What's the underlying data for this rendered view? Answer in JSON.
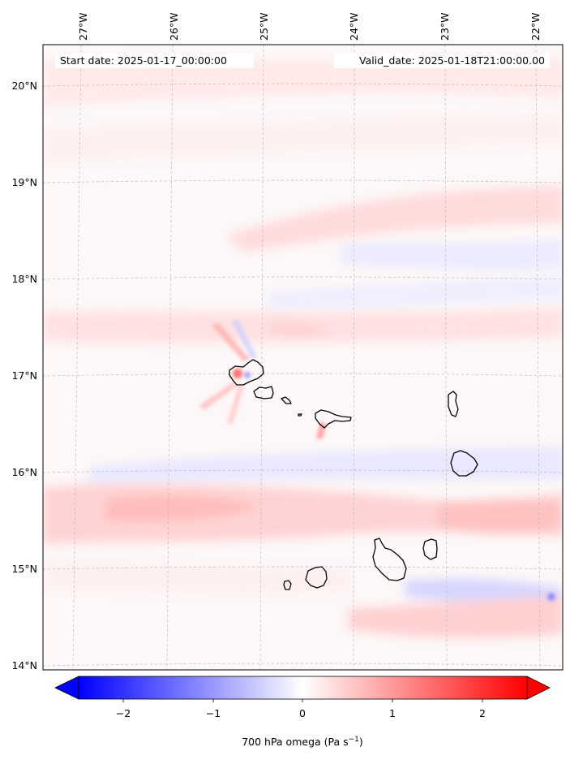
{
  "map": {
    "start_label": "Start date: 2025-01-17_00:00:00",
    "valid_label": "Valid_date: 2025-01-18T21:00:00.00",
    "lon_labels": [
      "27°W",
      "26°W",
      "25°W",
      "24°W",
      "23°W",
      "22°W"
    ],
    "lat_labels": [
      "20°N",
      "19°N",
      "18°N",
      "17°N",
      "16°N",
      "15°N",
      "14°N"
    ],
    "field_colors": {
      "positive": "#ff0000",
      "negative": "#0000ff",
      "neutral": "#ffffff"
    }
  },
  "colorbar": {
    "ticks": [
      "−2",
      "−1",
      "0",
      "1",
      "2"
    ],
    "label_main": "700 hPa omega (Pa s",
    "label_sup": "−1",
    "label_close": ")",
    "vmin": -2.6,
    "vmax": 2.6
  }
}
